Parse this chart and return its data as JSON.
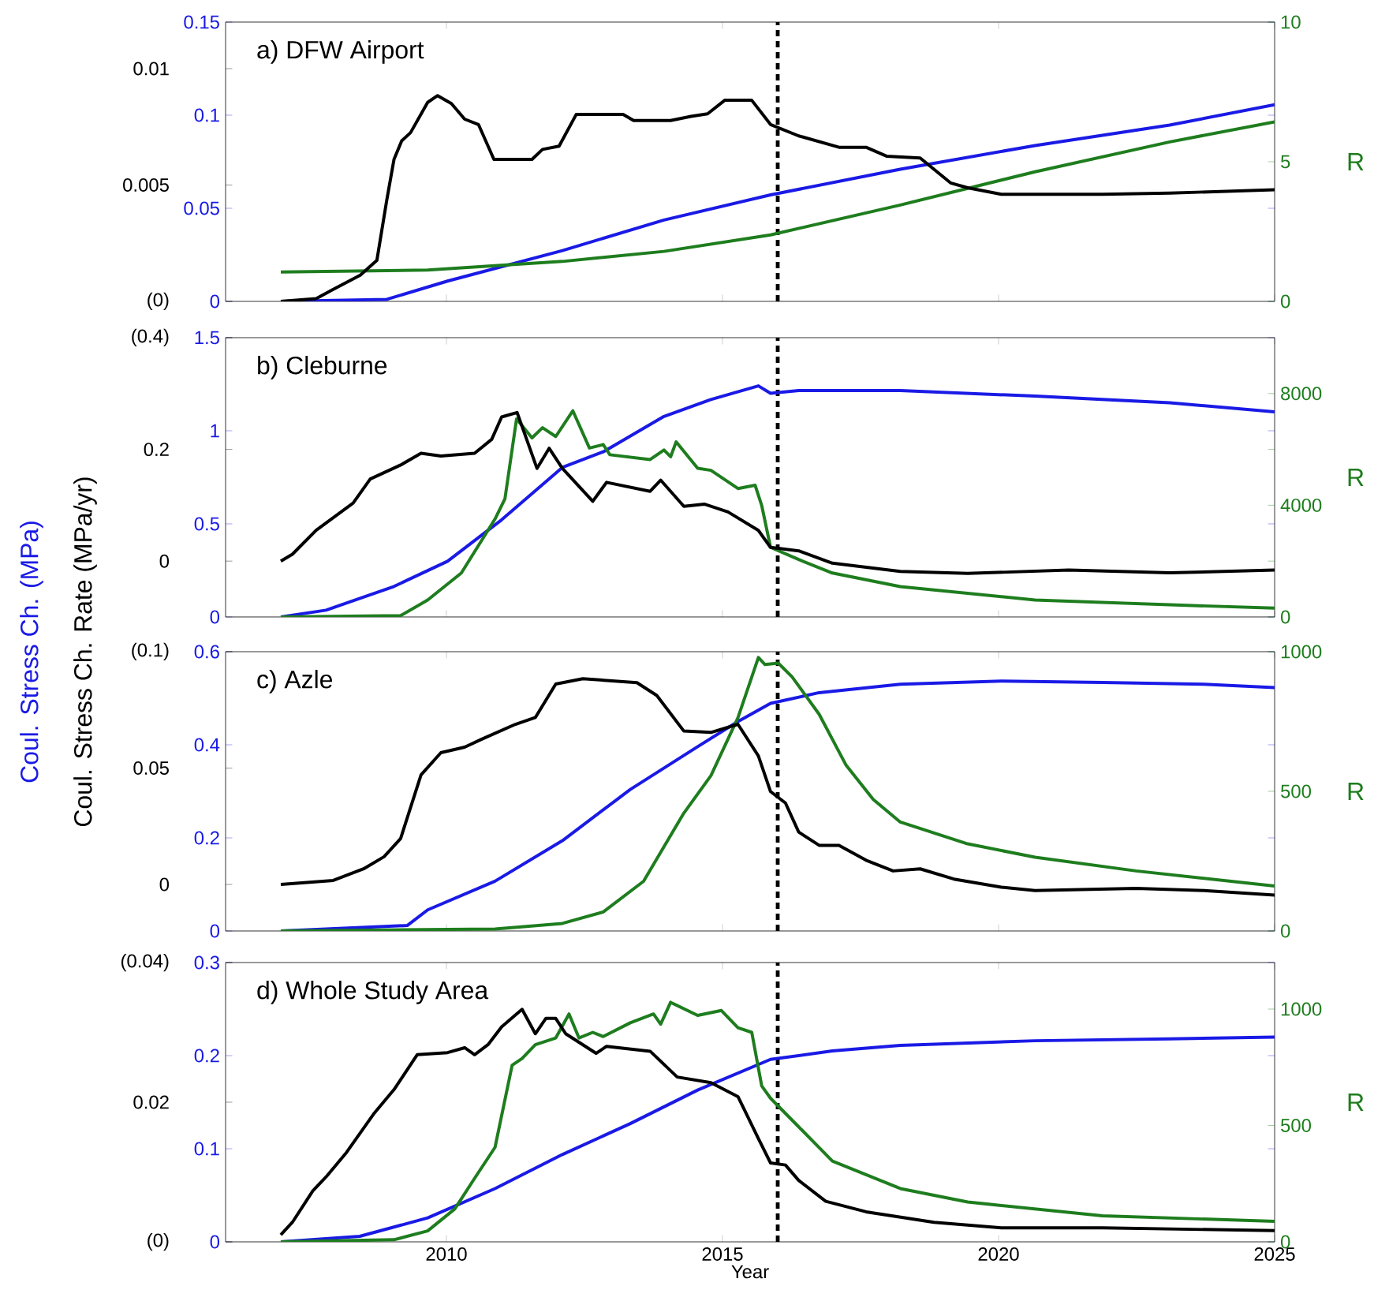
{
  "chart_data": [
    {
      "type": "line",
      "title": "a) DFW Airport",
      "xlim": [
        2006,
        2025
      ],
      "xticks": [
        2010,
        2015,
        2020,
        2025
      ],
      "tick_labels": "y",
      "ylim": [
        0,
        0.15
      ],
      "yticks": [
        0,
        0.05,
        0.1,
        0.15
      ],
      "y3lim": [
        0,
        0.012
      ],
      "y3ticks": [
        {
          "value": 0,
          "label": "(0)"
        },
        0.005,
        0.01
      ],
      "y2lim": [
        0,
        10
      ],
      "y2ticks": [
        0,
        5,
        10
      ],
      "y2label": "R",
      "ref_lines": [
        {
          "axis": "x",
          "value": 2016,
          "color": "#000000",
          "line_style": "dashed"
        }
      ],
      "series": [
        {
          "axis": "y",
          "color": "#1a1ae6",
          "x": [
            2007,
            2008.92,
            2010.02,
            2012.1,
            2013.94,
            2015.87,
            2018.22,
            2020.66,
            2023.1,
            2025
          ],
          "values": [
            0,
            0.0011,
            0.0109,
            0.0273,
            0.0437,
            0.0572,
            0.071,
            0.0837,
            0.0947,
            0.1056
          ]
        },
        {
          "axis": "y2",
          "color": "#1e7d1e",
          "x": [
            2007,
            2009.66,
            2012.1,
            2013.94,
            2015.87,
            2018.22,
            2020.66,
            2023.1,
            2025
          ],
          "values": [
            1.05,
            1.12,
            1.43,
            1.79,
            2.38,
            3.45,
            4.64,
            5.71,
            6.43
          ]
        },
        {
          "axis": "y3",
          "color": "#000000",
          "x": [
            2007,
            2007.64,
            2007.95,
            2008.44,
            2008.74,
            2008.92,
            2009.05,
            2009.19,
            2009.35,
            2009.66,
            2009.84,
            2010.09,
            2010.33,
            2010.58,
            2010.86,
            2011.55,
            2011.74,
            2012.04,
            2012.35,
            2013.2,
            2013.39,
            2014.06,
            2014.43,
            2014.73,
            2015.04,
            2015.53,
            2015.87,
            2016.38,
            2017.11,
            2017.6,
            2017.97,
            2018.58,
            2019.13,
            2019.44,
            2020.05,
            2021.88,
            2023.1,
            2025
          ],
          "values": [
            0,
            0.00012,
            0.00052,
            0.00113,
            0.00176,
            0.00436,
            0.0061,
            0.0069,
            0.00725,
            0.00855,
            0.00884,
            0.0085,
            0.00783,
            0.0076,
            0.0061,
            0.0061,
            0.00653,
            0.00667,
            0.00803,
            0.00803,
            0.00777,
            0.00777,
            0.00795,
            0.00806,
            0.00864,
            0.00864,
            0.0076,
            0.00711,
            0.00662,
            0.00662,
            0.00624,
            0.00616,
            0.00509,
            0.00488,
            0.0046,
            0.0046,
            0.00465,
            0.0048
          ]
        }
      ]
    },
    {
      "type": "line",
      "title": "b) Cleburne",
      "xlim": [
        2006,
        2025
      ],
      "xticks": [
        2010,
        2015,
        2020,
        2025
      ],
      "tick_labels": "y",
      "ylim": [
        0,
        1.5
      ],
      "yticks": [
        0,
        0.5,
        1,
        1.5
      ],
      "y3lim": [
        -0.1,
        0.4
      ],
      "y3ticks": [
        0,
        0.2,
        {
          "value": 0.4,
          "label": "(0.4)"
        }
      ],
      "y2lim": [
        0,
        10000
      ],
      "y2ticks": [
        0,
        {
          "value": 2000,
          "label": null
        },
        4000,
        {
          "value": 6000,
          "label": null
        },
        8000
      ],
      "y2label": "R",
      "ref_lines": [
        {
          "axis": "x",
          "value": 2016,
          "color": "#000000",
          "line_style": "dashed"
        }
      ],
      "series": [
        {
          "axis": "y",
          "color": "#1a1ae6",
          "x": [
            2007,
            2007.82,
            2009.05,
            2010.02,
            2011.0,
            2012.1,
            2012.84,
            2013.94,
            2014.79,
            2015.65,
            2015.87,
            2016.38,
            2018.22,
            2020.66,
            2023.1,
            2025
          ],
          "values": [
            0,
            0.0365,
            0.164,
            0.299,
            0.522,
            0.803,
            0.887,
            1.077,
            1.168,
            1.241,
            1.201,
            1.216,
            1.216,
            1.186,
            1.15,
            1.102
          ]
        },
        {
          "axis": "y2",
          "color": "#1e7d1e",
          "x": [
            2007,
            2009.17,
            2009.66,
            2010.27,
            2010.88,
            2011.06,
            2011.27,
            2011.55,
            2011.74,
            2011.98,
            2012.29,
            2012.59,
            2012.84,
            2012.96,
            2013.69,
            2013.94,
            2014.06,
            2014.16,
            2014.55,
            2014.79,
            2015.28,
            2015.59,
            2015.71,
            2015.87,
            2016.38,
            2016.99,
            2018.22,
            2020.66,
            2023.1,
            2025
          ],
          "values": [
            0,
            48,
            605,
            1573,
            3509,
            4235,
            7091,
            6413,
            6776,
            6462,
            7381,
            6050,
            6171,
            5808,
            5638,
            5977,
            5735,
            6268,
            5324,
            5251,
            4598,
            4719,
            3993,
            2493,
            2057,
            1573,
            1089,
            605,
            436,
            315
          ]
        },
        {
          "axis": "y3",
          "color": "#000000",
          "x": [
            2007,
            2007.21,
            2007.64,
            2008.31,
            2008.62,
            2009.17,
            2009.54,
            2009.9,
            2010.51,
            2010.82,
            2011.0,
            2011.28,
            2011.64,
            2011.86,
            2012.1,
            2012.65,
            2012.9,
            2013.69,
            2013.88,
            2014.3,
            2014.67,
            2015.1,
            2015.65,
            2015.87,
            2016.38,
            2016.99,
            2018.22,
            2019.44,
            2021.27,
            2023.1,
            2025
          ],
          "values": [
            0,
            0.0123,
            0.0552,
            0.104,
            0.147,
            0.172,
            0.193,
            0.188,
            0.193,
            0.218,
            0.258,
            0.266,
            0.166,
            0.202,
            0.166,
            0.107,
            0.141,
            0.125,
            0.145,
            0.098,
            0.102,
            0.088,
            0.055,
            0.0245,
            0.0184,
            -0.0037,
            -0.0184,
            -0.0221,
            -0.016,
            -0.021,
            -0.016
          ]
        }
      ]
    },
    {
      "type": "line",
      "title": "c) Azle",
      "xlim": [
        2006,
        2025
      ],
      "xticks": [
        2010,
        2015,
        2020,
        2025
      ],
      "tick_labels": "y",
      "ylabel": "Coul. Stress Ch.  (MPa)",
      "y3label": "Coul. Stress Ch. Rate  (MPa/yr)",
      "ylim": [
        0,
        0.6
      ],
      "yticks": [
        0,
        0.2,
        0.4,
        0.6
      ],
      "y3lim": [
        -0.02,
        0.1
      ],
      "y3ticks": [
        0,
        0.05,
        {
          "value": 0.1,
          "label": "(0.1)"
        }
      ],
      "y2lim": [
        0,
        1000
      ],
      "y2ticks": [
        0,
        500,
        1000
      ],
      "y2label": "R",
      "ref_lines": [
        {
          "axis": "x",
          "value": 2016,
          "color": "#000000",
          "line_style": "dashed"
        }
      ],
      "series": [
        {
          "axis": "y",
          "color": "#1a1ae6",
          "x": [
            2007,
            2009.29,
            2009.66,
            2010.88,
            2012.1,
            2013.33,
            2014.55,
            2015.28,
            2015.87,
            2016.75,
            2018.22,
            2020.05,
            2021.88,
            2023.72,
            2025
          ],
          "values": [
            0,
            0.0117,
            0.0453,
            0.107,
            0.194,
            0.304,
            0.396,
            0.45,
            0.489,
            0.512,
            0.53,
            0.537,
            0.534,
            0.53,
            0.523
          ]
        },
        {
          "axis": "y2",
          "color": "#1e7d1e",
          "x": [
            2007,
            2010.88,
            2012.1,
            2012.84,
            2013.57,
            2014.3,
            2014.79,
            2015.28,
            2015.65,
            2015.77,
            2016.01,
            2016.26,
            2016.75,
            2017.24,
            2017.73,
            2018.22,
            2019.44,
            2020.66,
            2022.49,
            2025
          ],
          "values": [
            0,
            7,
            27,
            68,
            178,
            422,
            556,
            764,
            979,
            954,
            959,
            910,
            776,
            593,
            471,
            390,
            312,
            264,
            215,
            161
          ]
        },
        {
          "axis": "y3",
          "color": "#000000",
          "x": [
            2007,
            2007.95,
            2008.5,
            2008.87,
            2009.17,
            2009.54,
            2009.9,
            2010.33,
            2010.64,
            2011.25,
            2011.61,
            2011.98,
            2012.47,
            2013.45,
            2013.81,
            2014.3,
            2014.79,
            2015.28,
            2015.65,
            2015.87,
            2016.14,
            2016.38,
            2016.75,
            2017.11,
            2017.6,
            2018.09,
            2018.58,
            2019.19,
            2020.05,
            2020.66,
            2022.49,
            2023.72,
            2025
          ],
          "values": [
            0,
            0.0017,
            0.0067,
            0.0119,
            0.0197,
            0.0471,
            0.0566,
            0.059,
            0.0624,
            0.0688,
            0.0717,
            0.0861,
            0.0884,
            0.0867,
            0.0812,
            0.0659,
            0.0653,
            0.0688,
            0.0552,
            0.0399,
            0.035,
            0.0225,
            0.0168,
            0.0168,
            0.0104,
            0.0058,
            0.0067,
            0.0023,
            -0.0012,
            -0.0026,
            -0.0017,
            -0.0026,
            -0.0046
          ]
        }
      ]
    },
    {
      "type": "line",
      "title": "d) Whole Study Area",
      "xlim": [
        2006,
        2025
      ],
      "xticks": [
        2010,
        2015,
        2020,
        2025
      ],
      "xlabel": "Year",
      "ylim": [
        0,
        0.3
      ],
      "yticks": [
        0,
        0.1,
        0.2,
        0.3
      ],
      "y3lim": [
        0,
        0.04
      ],
      "y3ticks": [
        {
          "value": 0,
          "label": "(0)"
        },
        0.02,
        {
          "value": 0.04,
          "label": "(0.04)"
        }
      ],
      "y2lim": [
        0,
        1200
      ],
      "y2ticks": [
        0,
        500,
        1000
      ],
      "y2label": "R",
      "ref_lines": [
        {
          "axis": "x",
          "value": 2016,
          "color": "#000000",
          "line_style": "dashed"
        }
      ],
      "series": [
        {
          "axis": "y",
          "color": "#1a1ae6",
          "x": [
            2007,
            2008.43,
            2009.66,
            2010.88,
            2012.1,
            2013.33,
            2014.55,
            2015.87,
            2016.99,
            2018.22,
            2020.66,
            2023.1,
            2025
          ],
          "values": [
            0,
            0.0059,
            0.0257,
            0.0572,
            0.0938,
            0.127,
            0.163,
            0.196,
            0.205,
            0.211,
            0.216,
            0.218,
            0.22
          ]
        },
        {
          "axis": "y2",
          "color": "#1e7d1e",
          "x": [
            2007,
            2009.05,
            2009.66,
            2010.15,
            2010.51,
            2010.88,
            2011.19,
            2011.37,
            2011.61,
            2011.98,
            2012.22,
            2012.4,
            2012.65,
            2012.84,
            2013.33,
            2013.75,
            2013.88,
            2014.06,
            2014.55,
            2014.98,
            2015.28,
            2015.53,
            2015.71,
            2015.87,
            2016.38,
            2016.99,
            2018.22,
            2019.44,
            2021.88,
            2025
          ],
          "values": [
            0,
            9,
            47,
            141,
            273,
            406,
            759,
            788,
            847,
            876,
            979,
            876,
            900,
            882,
            941,
            979,
            935,
            1029,
            973,
            994,
            920,
            900,
            670,
            617,
            494,
            347,
            229,
            171,
            112,
            88
          ]
        },
        {
          "axis": "y3",
          "color": "#000000",
          "x": [
            2007,
            2007.21,
            2007.58,
            2007.82,
            2008.19,
            2008.68,
            2009.05,
            2009.47,
            2010.02,
            2010.33,
            2010.51,
            2010.76,
            2011.0,
            2011.37,
            2011.61,
            2011.8,
            2011.98,
            2012.16,
            2012.71,
            2012.9,
            2013.69,
            2014.18,
            2014.79,
            2015.28,
            2015.65,
            2015.87,
            2016.14,
            2016.38,
            2016.87,
            2017.6,
            2018.83,
            2020.05,
            2021.88,
            2025
          ],
          "values": [
            0.001,
            0.0028,
            0.0073,
            0.0093,
            0.0128,
            0.0183,
            0.0218,
            0.0268,
            0.0271,
            0.0278,
            0.0268,
            0.0283,
            0.0308,
            0.0333,
            0.0298,
            0.032,
            0.032,
            0.0298,
            0.027,
            0.028,
            0.0273,
            0.0236,
            0.0228,
            0.0208,
            0.0148,
            0.0113,
            0.011,
            0.0088,
            0.0058,
            0.0043,
            0.0028,
            0.002,
            0.002,
            0.0016
          ]
        }
      ]
    }
  ]
}
